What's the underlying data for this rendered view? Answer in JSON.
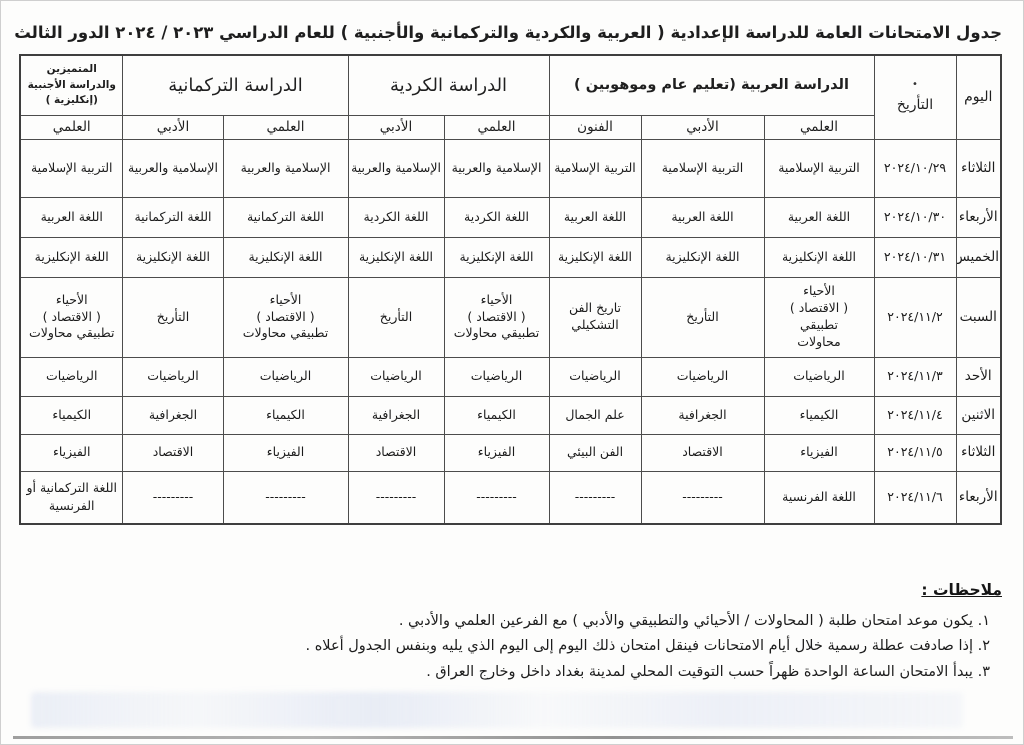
{
  "page": {
    "title": "جدول الامتحانات العامة للدراسة الإعدادية ( العربية والكردية والتركمانية والأجنبية ) للعام الدراسي ٢٠٢٣ / ٢٠٢٤ الدور الثالث"
  },
  "table": {
    "header": {
      "day": "اليوم",
      "date": "التأريخ",
      "date_mark": "•",
      "groups": [
        {
          "label": "الدراسة العربية (تعليم عام وموهوبين )",
          "cols": [
            "العلمي",
            "الأدبي",
            "الفنون"
          ]
        },
        {
          "label": "الدراسة الكردية",
          "cols": [
            "العلمي",
            "الأدبي"
          ]
        },
        {
          "label": "الدراسة التركمانية",
          "cols": [
            "العلمي",
            "الأدبي"
          ]
        },
        {
          "label": "المتميزين والدراسة الأجنبية (إنكليزية )",
          "cols": [
            "العلمي"
          ]
        }
      ]
    },
    "rows": [
      {
        "day": "الثلاثاء",
        "date": "٢٠٢٤/١٠/٢٩",
        "subjects": [
          "التربية الإسلامية",
          "التربية الإسلامية",
          "التربية الإسلامية",
          "الإسلامية والعربية",
          "الإسلامية والعربية",
          "الإسلامية والعربية",
          "الإسلامية والعربية",
          "التربية الإسلامية"
        ]
      },
      {
        "day": "الأربعاء",
        "date": "٢٠٢٤/١٠/٣٠",
        "subjects": [
          "اللغة العربية",
          "اللغة العربية",
          "اللغة العربية",
          "اللغة الكردية",
          "اللغة الكردية",
          "اللغة التركمانية",
          "اللغة التركمانية",
          "اللغة العربية"
        ]
      },
      {
        "day": "الخميس",
        "date": "٢٠٢٤/١٠/٣١",
        "subjects": [
          "اللغة الإنكليزية",
          "اللغة الإنكليزية",
          "اللغة الإنكليزية",
          "اللغة الإنكليزية",
          "اللغة الإنكليزية",
          "اللغة الإنكليزية",
          "اللغة الإنكليزية",
          "اللغة الإنكليزية"
        ]
      },
      {
        "day": "السبت",
        "date": "٢٠٢٤/١١/٢",
        "subjects": [
          "الأحياء\n( الاقتصاد )\nتطبيقي\nمحاولات",
          "التأريخ",
          "تاريخ الفن التشكيلي",
          "الأحياء\n( الاقتصاد )\nتطبيقي محاولات",
          "التأريخ",
          "الأحياء\n( الاقتصاد )\nتطبيقي محاولات",
          "التأريخ",
          "الأحياء\n( الاقتصاد )\nتطبيقي محاولات"
        ]
      },
      {
        "day": "الأحد",
        "date": "٢٠٢٤/١١/٣",
        "subjects": [
          "الرياضيات",
          "الرياضيات",
          "الرياضيات",
          "الرياضيات",
          "الرياضيات",
          "الرياضيات",
          "الرياضيات",
          "الرياضيات"
        ]
      },
      {
        "day": "الاثنين",
        "date": "٢٠٢٤/١١/٤",
        "subjects": [
          "الكيمياء",
          "الجغرافية",
          "علم الجمال",
          "الكيمياء",
          "الجغرافية",
          "الكيمياء",
          "الجغرافية",
          "الكيمياء"
        ]
      },
      {
        "day": "الثلاثاء",
        "date": "٢٠٢٤/١١/٥",
        "subjects": [
          "الفيزياء",
          "الاقتصاد",
          "الفن البيئي",
          "الفيزياء",
          "الاقتصاد",
          "الفيزياء",
          "الاقتصاد",
          "الفيزياء"
        ]
      },
      {
        "day": "الأربعاء",
        "date": "٢٠٢٤/١١/٦",
        "subjects": [
          "اللغة الفرنسية",
          "---------",
          "---------",
          "---------",
          "---------",
          "---------",
          "---------",
          "اللغة التركمانية أو الفرنسية"
        ]
      }
    ]
  },
  "notes": {
    "heading": "ملاحظات :",
    "items": [
      "١. يكون موعد امتحان طلبة ( المحاولات / الأحيائي والتطبيقي والأدبي ) مع الفرعين العلمي والأدبي .",
      "٢. إذا صادفت عطلة رسمية خلال أيام الامتحانات فينقل امتحان ذلك اليوم إلى اليوم الذي يليه وبنفس الجدول أعلاه .",
      "٣. يبدأ الامتحان الساعة الواحدة ظهراً حسب التوقيت المحلي لمدينة بغداد داخل وخارج العراق ."
    ]
  }
}
